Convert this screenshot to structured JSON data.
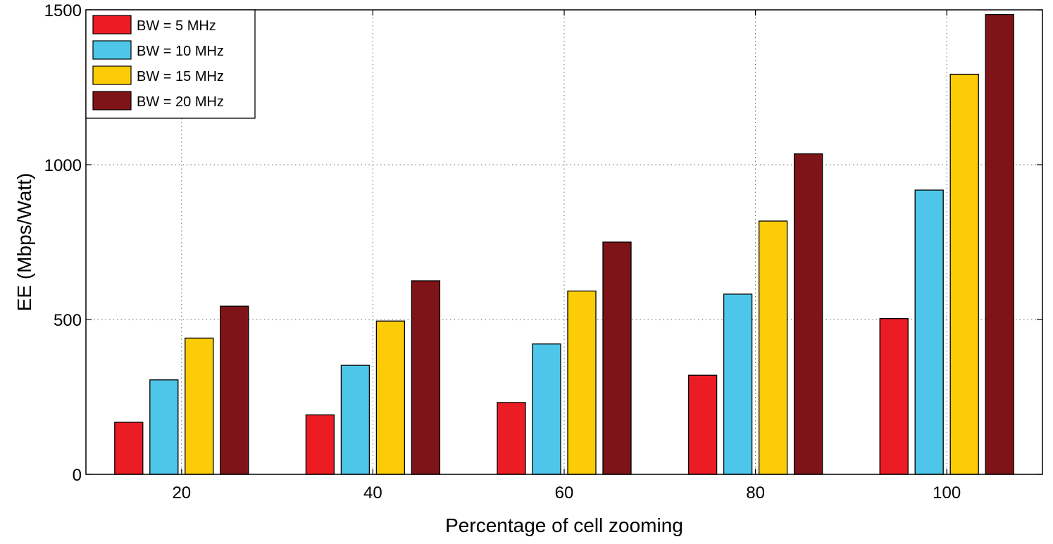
{
  "chart_data": {
    "type": "bar",
    "title": "",
    "xlabel": "Percentage of cell zooming",
    "ylabel": "EE (Mbps/Watt)",
    "categories": [
      "20",
      "40",
      "60",
      "80",
      "100"
    ],
    "ylim": [
      0,
      1500
    ],
    "yticks": [
      0,
      500,
      1000,
      1500
    ],
    "grid": true,
    "legend_position": "top-left",
    "series": [
      {
        "name": "BW = 5 MHz",
        "color": "#ec1c24",
        "values": [
          168,
          192,
          232,
          320,
          503
        ]
      },
      {
        "name": "BW = 10 MHz",
        "color": "#4ec6ea",
        "values": [
          305,
          352,
          421,
          582,
          918
        ]
      },
      {
        "name": "BW = 15 MHz",
        "color": "#fccc06",
        "values": [
          440,
          495,
          592,
          818,
          1292
        ]
      },
      {
        "name": "BW = 20 MHz",
        "color": "#7f1418",
        "values": [
          543,
          625,
          750,
          1035,
          1485
        ]
      }
    ]
  }
}
